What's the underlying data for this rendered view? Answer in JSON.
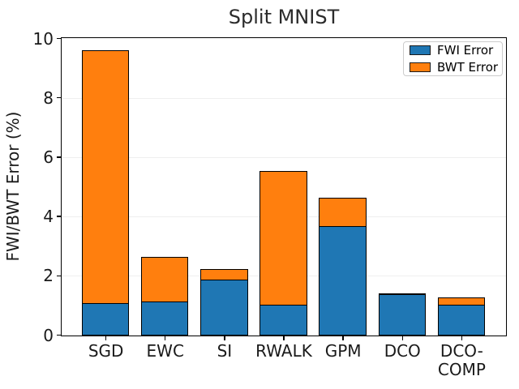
{
  "chart_data": {
    "type": "bar",
    "stacked": true,
    "title": "Split MNIST",
    "xlabel": "",
    "ylabel": "FWI/BWT Error (%)",
    "categories": [
      "SGD",
      "EWC",
      "SI",
      "RWALK",
      "GPM",
      "DCO",
      "DCO-\nCOMP"
    ],
    "series": [
      {
        "name": "FWI Error",
        "color": "#1f77b4",
        "values": [
          1.1,
          1.15,
          1.9,
          1.05,
          3.7,
          1.42,
          1.05
        ]
      },
      {
        "name": "BWT Error",
        "color": "#ff7f0e",
        "values": [
          8.55,
          1.55,
          0.38,
          4.55,
          1.0,
          0.0,
          0.27
        ]
      }
    ],
    "stack_totals": [
      9.65,
      2.7,
      2.28,
      5.6,
      4.7,
      1.42,
      1.32
    ],
    "ylim": [
      0,
      10
    ],
    "yticks": [
      0,
      2,
      4,
      6,
      8,
      10
    ],
    "grid": true,
    "grid_color": "#efefef",
    "bar_edge_color": "#000000",
    "legend_position": "upper right"
  }
}
